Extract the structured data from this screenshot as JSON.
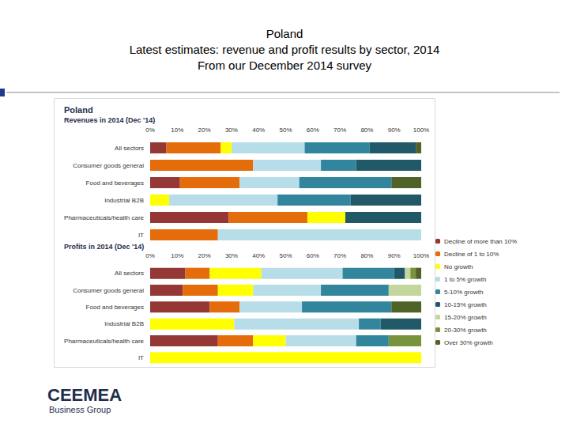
{
  "header": {
    "title": "Poland",
    "subtitle": [
      "Latest estimates: revenue and profit results by sector, 2014",
      "From our December 2014 survey"
    ]
  },
  "panel_title": "Poland",
  "logo": {
    "name": "CEEMEA",
    "tagline": "Business Group"
  },
  "chart_data": [
    {
      "type": "bar",
      "title": "Revenues in 2014 (Dec '14)",
      "orientation": "horizontal",
      "stacked": true,
      "grid": false,
      "legend": "right",
      "categories": [
        "All sectors",
        "Consumer goods general",
        "Food and beverages",
        "Industrial B2B",
        "Pharmaceuticals/health care",
        "IT"
      ],
      "xlim": [
        0,
        100
      ],
      "xticks": [
        {
          "value": 0,
          "label": "0%"
        },
        {
          "value": 10,
          "label": "10%"
        },
        {
          "value": 20,
          "label": "20%"
        },
        {
          "value": 30,
          "label": "30%"
        },
        {
          "value": 40,
          "label": "40%"
        },
        {
          "value": 50,
          "label": "50%"
        },
        {
          "value": 60,
          "label": "60%"
        },
        {
          "value": 70,
          "label": "70%"
        },
        {
          "value": 80,
          "label": "80%"
        },
        {
          "value": 90,
          "label": "90%"
        },
        {
          "value": 100,
          "label": "100%"
        }
      ],
      "series": [
        {
          "name": "Decline of more than 10%",
          "color": "#953735",
          "values": [
            6,
            0,
            11,
            0,
            29,
            0
          ]
        },
        {
          "name": "Decline of 1 to 10%",
          "color": "#e46c0a",
          "values": [
            20,
            38,
            22,
            0,
            29,
            25
          ]
        },
        {
          "name": "No growth",
          "color": "#ffff00",
          "values": [
            4,
            0,
            0,
            7,
            14,
            0
          ]
        },
        {
          "name": "1 to 5% growth",
          "color": "#b7dee8",
          "values": [
            27,
            25,
            22,
            40,
            0,
            75
          ]
        },
        {
          "name": "5-10% growth",
          "color": "#31859c",
          "values": [
            24,
            13,
            34,
            27,
            0,
            0
          ]
        },
        {
          "name": "10-15% growth",
          "color": "#215968",
          "values": [
            17,
            24,
            0,
            26,
            28,
            0
          ]
        },
        {
          "name": "15-20% growth",
          "color": "#c3d69b",
          "values": [
            0,
            0,
            0,
            0,
            0,
            0
          ]
        },
        {
          "name": "20-30% growth",
          "color": "#77933c",
          "values": [
            0,
            0,
            0,
            0,
            0,
            0
          ]
        },
        {
          "name": "Over 30% growth",
          "color": "#4f6228",
          "values": [
            2,
            0,
            11,
            0,
            0,
            0
          ]
        }
      ]
    },
    {
      "type": "bar",
      "title": "Profits in 2014 (Dec '14)",
      "orientation": "horizontal",
      "stacked": true,
      "grid": false,
      "legend": "right",
      "categories": [
        "All sectors",
        "Consumer goods general",
        "Food and beverages",
        "Industrial B2B",
        "Pharmaceuticals/health care",
        "IT"
      ],
      "xlim": [
        0,
        100
      ],
      "xticks": [
        {
          "value": 0,
          "label": "0%"
        },
        {
          "value": 10,
          "label": "10%"
        },
        {
          "value": 20,
          "label": "20%"
        },
        {
          "value": 30,
          "label": "30%"
        },
        {
          "value": 40,
          "label": "40%"
        },
        {
          "value": 50,
          "label": "50%"
        },
        {
          "value": 60,
          "label": "60%"
        },
        {
          "value": 70,
          "label": "70%"
        },
        {
          "value": 80,
          "label": "80%"
        },
        {
          "value": 90,
          "label": "90%"
        },
        {
          "value": 100,
          "label": "100%"
        }
      ],
      "series": [
        {
          "name": "Decline of more than 10%",
          "color": "#953735",
          "values": [
            13,
            12,
            22,
            0,
            25,
            0
          ]
        },
        {
          "name": "Decline of 1 to 10%",
          "color": "#e46c0a",
          "values": [
            9,
            13,
            11,
            0,
            13,
            0
          ]
        },
        {
          "name": "No growth",
          "color": "#ffff00",
          "values": [
            19,
            13,
            0,
            31,
            12,
            100
          ]
        },
        {
          "name": "1 to 5% growth",
          "color": "#b7dee8",
          "values": [
            30,
            25,
            23,
            46,
            26,
            0
          ]
        },
        {
          "name": "5-10% growth",
          "color": "#31859c",
          "values": [
            19,
            25,
            33,
            8,
            12,
            0
          ]
        },
        {
          "name": "10-15% growth",
          "color": "#215968",
          "values": [
            4,
            0,
            0,
            15,
            0,
            0
          ]
        },
        {
          "name": "15-20% growth",
          "color": "#c3d69b",
          "values": [
            2,
            12,
            0,
            0,
            0,
            0
          ]
        },
        {
          "name": "20-30% growth",
          "color": "#77933c",
          "values": [
            2,
            0,
            0,
            0,
            12,
            0
          ]
        },
        {
          "name": "Over 30% growth",
          "color": "#4f6228",
          "values": [
            2,
            0,
            11,
            0,
            0,
            0
          ]
        }
      ]
    }
  ]
}
